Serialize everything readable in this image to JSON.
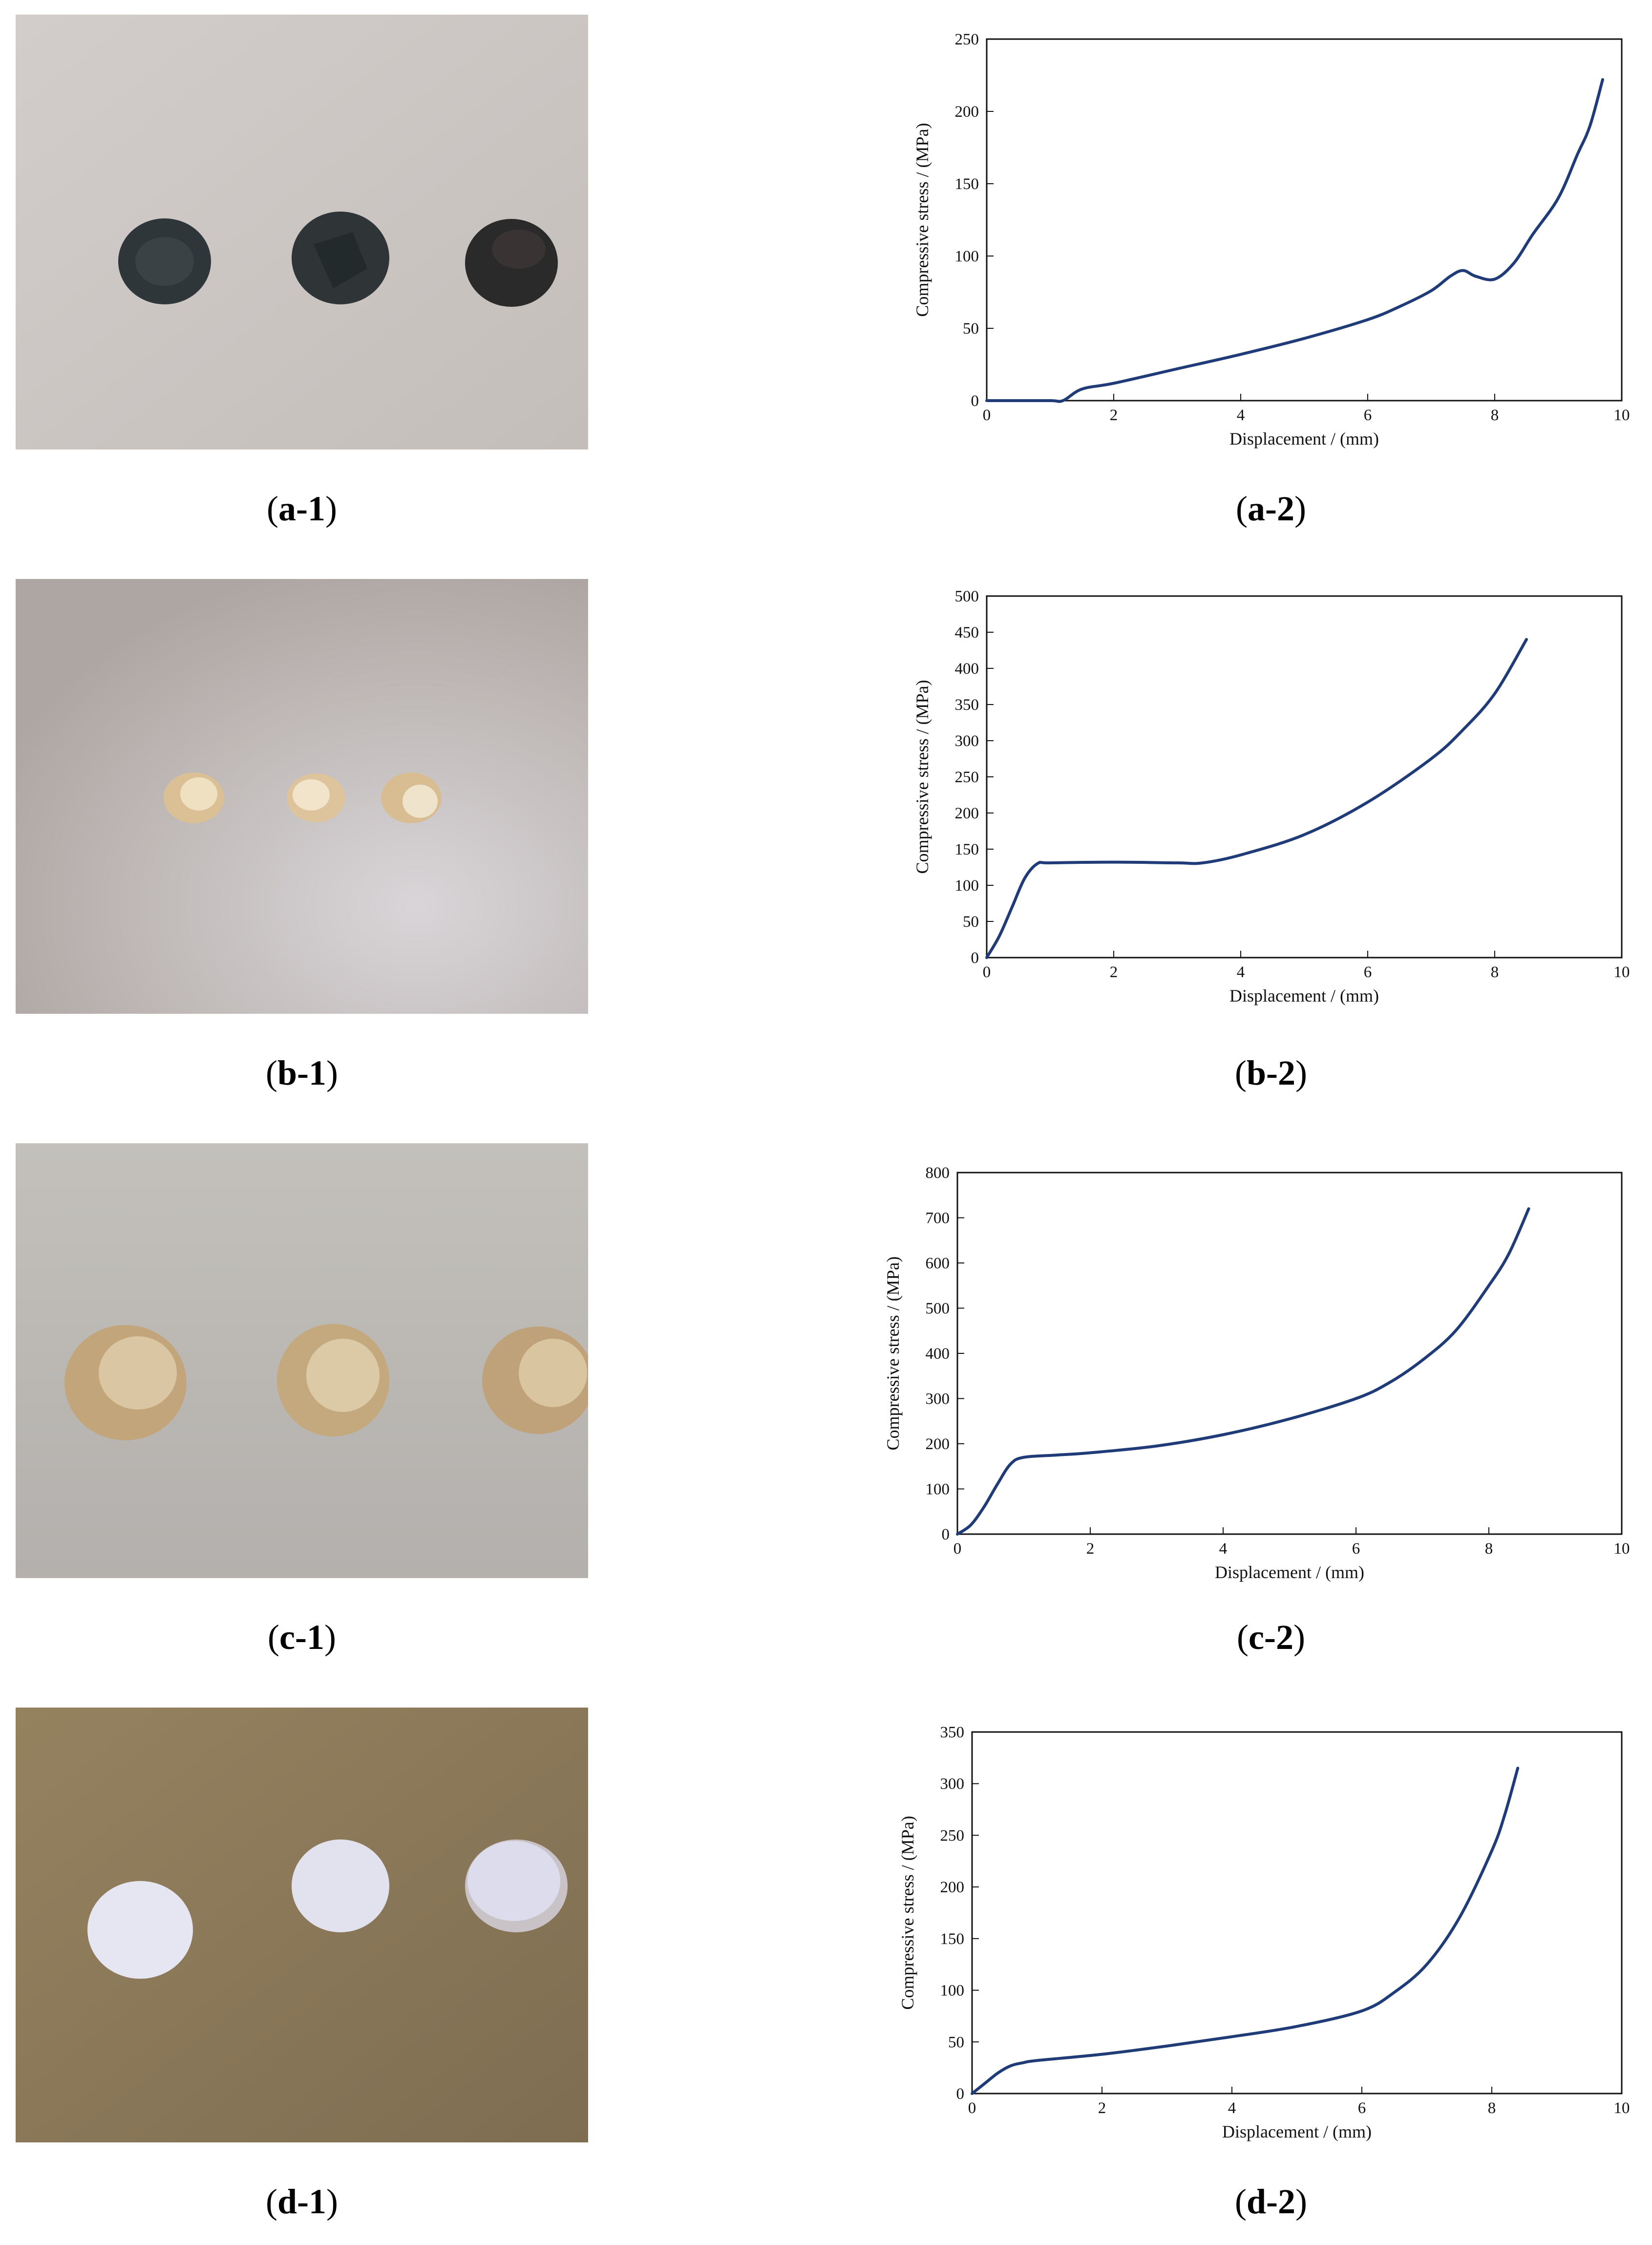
{
  "panels": [
    {
      "photo_caption": "a-1",
      "chart_caption": "a-2",
      "chart_data": {
        "type": "line",
        "xlabel": "Displacement / (mm)",
        "ylabel": "Compressive stress / (MPa)",
        "xlim": [
          0,
          10
        ],
        "ylim": [
          0,
          250
        ],
        "xticks": [
          0,
          2,
          4,
          6,
          8,
          10
        ],
        "yticks": [
          0,
          50,
          100,
          150,
          200,
          250
        ],
        "grid": false,
        "series": [
          {
            "x": [
              0,
              0.3,
              1.0,
              1.2,
              1.5,
              2,
              3,
              4,
              5,
              6,
              6.5,
              7,
              7.3,
              7.5,
              7.7,
              8.0,
              8.3,
              8.6,
              9.0,
              9.3,
              9.5,
              9.7
            ],
            "y": [
              0,
              0,
              0,
              0,
              8,
              12,
              22,
              32,
              43,
              56,
              65,
              76,
              86,
              90,
              86,
              84,
              95,
              115,
              140,
              170,
              190,
              222
            ]
          }
        ]
      }
    },
    {
      "photo_caption": "b-1",
      "chart_caption": "b-2",
      "chart_data": {
        "type": "line",
        "xlabel": "Displacement / (mm)",
        "ylabel": "Compressive stress / (MPa)",
        "xlim": [
          0,
          10
        ],
        "ylim": [
          0,
          500
        ],
        "xticks": [
          0,
          2,
          4,
          6,
          8,
          10
        ],
        "yticks": [
          0,
          50,
          100,
          150,
          200,
          250,
          300,
          350,
          400,
          450,
          500
        ],
        "grid": false,
        "series": [
          {
            "x": [
              0,
              0.2,
              0.4,
              0.6,
              0.8,
              1.0,
              2.0,
              3.0,
              3.4,
              4.0,
              5.0,
              6.0,
              7.0,
              7.5,
              8.0,
              8.5
            ],
            "y": [
              0,
              30,
              70,
              110,
              130,
              131,
              132,
              131,
              131,
              142,
              170,
              215,
              275,
              315,
              365,
              440
            ]
          }
        ]
      }
    },
    {
      "photo_caption": "c-1",
      "chart_caption": "c-2",
      "chart_data": {
        "type": "line",
        "xlabel": "Displacement / (mm)",
        "ylabel": "Compressive stress / (MPa)",
        "xlim": [
          0,
          10
        ],
        "ylim": [
          0,
          800
        ],
        "xticks": [
          0,
          2,
          4,
          6,
          8,
          10
        ],
        "yticks": [
          0,
          100,
          200,
          300,
          400,
          500,
          600,
          700,
          800
        ],
        "grid": false,
        "series": [
          {
            "x": [
              0,
              0.2,
              0.4,
              0.6,
              0.8,
              1.0,
              1.5,
              2,
              3,
              4,
              5,
              6,
              6.5,
              7,
              7.5,
              8,
              8.3,
              8.6
            ],
            "y": [
              0,
              20,
              60,
              110,
              155,
              170,
              175,
              180,
              195,
              220,
              255,
              300,
              335,
              385,
              450,
              550,
              620,
              720
            ]
          }
        ]
      }
    },
    {
      "photo_caption": "d-1",
      "chart_caption": "d-2",
      "chart_data": {
        "type": "line",
        "xlabel": "Displacement / (mm)",
        "ylabel": "Compressive stress / (MPa)",
        "xlim": [
          0,
          10
        ],
        "ylim": [
          0,
          350
        ],
        "xticks": [
          0,
          2,
          4,
          6,
          8,
          10
        ],
        "yticks": [
          0,
          50,
          100,
          150,
          200,
          250,
          300,
          350
        ],
        "grid": false,
        "series": [
          {
            "x": [
              0,
              0.2,
              0.4,
              0.6,
              0.8,
              1,
              2,
              3,
              4,
              5,
              6,
              6.5,
              7,
              7.5,
              8,
              8.2,
              8.4
            ],
            "y": [
              0,
              10,
              20,
              27,
              30,
              32,
              38,
              46,
              55,
              65,
              80,
              98,
              125,
              170,
              235,
              270,
              315
            ]
          }
        ]
      }
    }
  ],
  "colors": {
    "line": "#1f3c78",
    "axis": "#111111",
    "photo_a_bg": "#cfcac8",
    "photo_b_bg": "#b9b1ad",
    "photo_c_bg": "#bdbab6",
    "photo_d_bg": "#8c7b5c",
    "sample_a": "#2d3336",
    "sample_b": "#e6cfa4",
    "sample_c": "#c9af86",
    "sample_d": "#e4e4ef"
  }
}
